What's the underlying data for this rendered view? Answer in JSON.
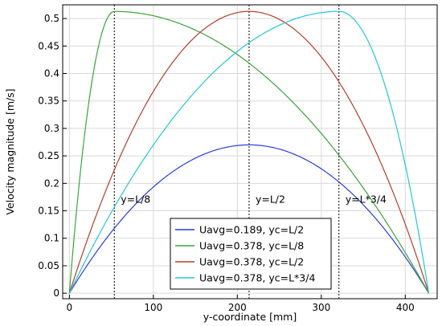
{
  "chart_data": {
    "type": "line",
    "xlabel": "y-coordinate [mm]",
    "ylabel": "Velocity magnitude [m/s]",
    "xlim": [
      -8,
      438
    ],
    "ylim": [
      -0.01,
      0.525
    ],
    "x_ticks": [
      0,
      100,
      200,
      300,
      400
    ],
    "y_ticks": [
      0,
      0.05,
      0.1,
      0.15,
      0.2,
      0.25,
      0.3,
      0.35,
      0.4,
      0.45,
      0.5
    ],
    "y_tick_labels": [
      "0",
      "0.05",
      "0.1",
      "0.15",
      "0.2",
      "0.25",
      "0.3",
      "0.35",
      "0.4",
      "0.45",
      "0.5"
    ],
    "grid": true,
    "legend_position": "bottom-center",
    "L": 428,
    "series": [
      {
        "name": "Uavg=0.189, yc=L/2",
        "color": "#2c3fd1",
        "peak_x": 214,
        "peak_y": 0.27
      },
      {
        "name": "Uavg=0.378, yc=L/8",
        "color": "#3ca33c",
        "peak_x": 53.5,
        "peak_y": 0.513
      },
      {
        "name": "Uavg=0.378, yc=L/2",
        "color": "#b0402a",
        "peak_x": 214,
        "peak_y": 0.513
      },
      {
        "name": "Uavg=0.378, yc=L*3/4",
        "color": "#27c4dc",
        "peak_x": 321,
        "peak_y": 0.513
      }
    ],
    "annotations": [
      {
        "text": "y=L/8",
        "x": 53.5
      },
      {
        "text": "y=L/2",
        "x": 214
      },
      {
        "text": "y=L*3/4",
        "x": 321
      }
    ],
    "annotation_y": 0.162
  }
}
